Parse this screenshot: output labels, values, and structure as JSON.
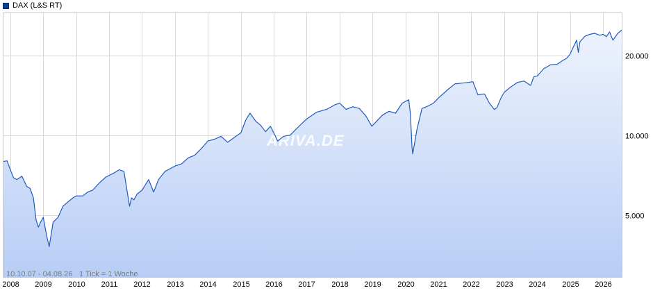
{
  "legend": {
    "label": "DAX (L&S RT)",
    "color": "#0b3d91"
  },
  "footer": {
    "range": "10.10.07 - 04.08.26",
    "tick_info": "1 Tick = 1 Woche"
  },
  "watermark": "ARIVA.DE",
  "chart_data": {
    "type": "area",
    "scale": "log",
    "grid": true,
    "line_color": "#1f5bbf",
    "fill_top_color": "#eef3fd",
    "fill_bottom_color": "#b7cdf5",
    "x_range": [
      2007.77,
      2026.59
    ],
    "y_range": [
      2900,
      29000
    ],
    "x_ticks": [
      "2008",
      "2009",
      "2010",
      "2011",
      "2012",
      "2013",
      "2014",
      "2015",
      "2016",
      "2017",
      "2018",
      "2019",
      "2020",
      "2021",
      "2022",
      "2023",
      "2024",
      "2025",
      "2026"
    ],
    "y_ticks": [
      {
        "value": 5000,
        "label": "5.000"
      },
      {
        "value": 10000,
        "label": "10.000"
      },
      {
        "value": 20000,
        "label": "20.000"
      }
    ],
    "series": [
      {
        "x": [
          2007.77,
          2007.9,
          2008.0,
          2008.1,
          2008.2,
          2008.35,
          2008.5,
          2008.6,
          2008.7,
          2008.78,
          2008.85,
          2008.92,
          2009.0,
          2009.1,
          2009.18,
          2009.3,
          2009.45,
          2009.6,
          2009.75,
          2009.9,
          2010.0,
          2010.2,
          2010.35,
          2010.5,
          2010.7,
          2010.9,
          2011.0,
          2011.15,
          2011.3,
          2011.45,
          2011.55,
          2011.62,
          2011.68,
          2011.75,
          2011.85,
          2012.0,
          2012.2,
          2012.35,
          2012.5,
          2012.7,
          2013.0,
          2013.2,
          2013.4,
          2013.6,
          2013.8,
          2014.0,
          2014.2,
          2014.4,
          2014.6,
          2014.8,
          2015.0,
          2015.15,
          2015.28,
          2015.45,
          2015.6,
          2015.75,
          2015.9,
          2016.0,
          2016.12,
          2016.3,
          2016.5,
          2016.7,
          2016.9,
          2017.0,
          2017.3,
          2017.6,
          2017.85,
          2018.0,
          2018.2,
          2018.4,
          2018.6,
          2018.8,
          2018.98,
          2019.1,
          2019.3,
          2019.5,
          2019.7,
          2019.9,
          2020.1,
          2020.15,
          2020.2,
          2020.22,
          2020.35,
          2020.5,
          2020.7,
          2020.85,
          2021.0,
          2021.3,
          2021.5,
          2021.7,
          2021.9,
          2022.05,
          2022.2,
          2022.4,
          2022.55,
          2022.7,
          2022.78,
          2022.9,
          2023.0,
          2023.2,
          2023.4,
          2023.6,
          2023.8,
          2023.9,
          2024.0,
          2024.2,
          2024.4,
          2024.6,
          2024.8,
          2024.9,
          2025.0,
          2025.1,
          2025.2,
          2025.25,
          2025.3,
          2025.45,
          2025.6,
          2025.75,
          2025.9,
          2026.0,
          2026.1,
          2026.2,
          2026.3,
          2026.45,
          2026.59
        ],
        "values": [
          7950,
          8000,
          7400,
          6900,
          6800,
          7000,
          6400,
          6300,
          5800,
          4800,
          4500,
          4700,
          4900,
          4200,
          3800,
          4700,
          4900,
          5400,
          5600,
          5800,
          5900,
          5900,
          6100,
          6200,
          6600,
          6950,
          7050,
          7200,
          7400,
          7300,
          6100,
          5400,
          5800,
          5700,
          6000,
          6200,
          6800,
          6100,
          6800,
          7300,
          7650,
          7800,
          8200,
          8400,
          8900,
          9500,
          9650,
          9900,
          9400,
          9800,
          10200,
          11400,
          12100,
          11300,
          10900,
          10300,
          10800,
          10200,
          9500,
          9900,
          10000,
          10600,
          11200,
          11500,
          12200,
          12500,
          13000,
          13200,
          12500,
          12800,
          12600,
          11800,
          10800,
          11200,
          11900,
          12300,
          12100,
          13200,
          13600,
          12000,
          9000,
          8500,
          10500,
          12600,
          12900,
          13200,
          13800,
          14900,
          15600,
          15700,
          15800,
          15900,
          14200,
          14300,
          13200,
          12500,
          12700,
          13800,
          14500,
          15200,
          15800,
          16000,
          15400,
          16600,
          16700,
          17800,
          18400,
          18500,
          19200,
          19500,
          20200,
          21500,
          22800,
          20500,
          22500,
          23600,
          24000,
          24200,
          23800,
          24000,
          23500,
          24500,
          22800,
          24200,
          25000
        ]
      }
    ]
  }
}
